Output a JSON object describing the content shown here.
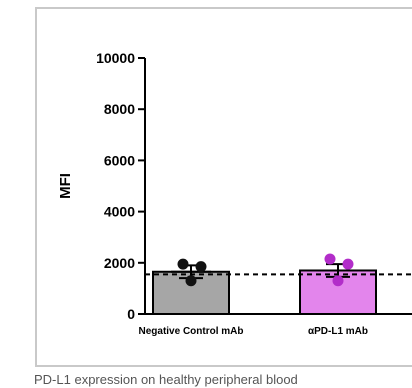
{
  "chart_data": {
    "type": "bar",
    "ylabel": "MFI",
    "ylim": [
      0,
      10000
    ],
    "yticks": [
      0,
      2000,
      4000,
      6000,
      8000,
      10000
    ],
    "categories": [
      "Negative Control mAb",
      "αPD-L1 mAb"
    ],
    "values": [
      1650,
      1700
    ],
    "errors": [
      250,
      250
    ],
    "bar_colors": [
      "#a6a6a6",
      "#e385ec"
    ],
    "point_colors": [
      "#111111",
      "#b22dc9"
    ],
    "points": [
      [
        1950,
        1850,
        1300
      ],
      [
        2150,
        1950,
        1300
      ]
    ],
    "reference_line": 1550,
    "legend": "none",
    "grid": false
  },
  "caption": "PD-L1 expression on healthy peripheral blood"
}
